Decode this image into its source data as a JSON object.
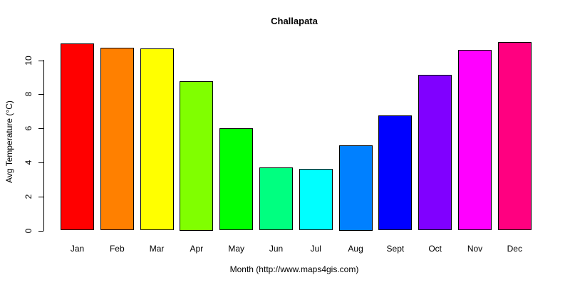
{
  "chart_data": {
    "type": "bar",
    "title": "Challapata",
    "xlabel": "Month (http://www.maps4gis.com)",
    "ylabel": "Avg Temperature (°C)",
    "categories": [
      "Jan",
      "Feb",
      "Mar",
      "Apr",
      "May",
      "Jun",
      "Jul",
      "Aug",
      "Sept",
      "Oct",
      "Nov",
      "Dec"
    ],
    "values": [
      11.0,
      10.75,
      10.7,
      8.75,
      6.0,
      3.7,
      3.6,
      5.0,
      6.75,
      9.15,
      10.6,
      11.05
    ],
    "colors": [
      "#FF0000",
      "#FF8000",
      "#FFFF00",
      "#80FF00",
      "#00FF00",
      "#00FF80",
      "#00FFFF",
      "#0080FF",
      "#0000FF",
      "#8000FF",
      "#FF00FF",
      "#FF0080"
    ],
    "ylim": [
      0,
      11.2
    ],
    "yticks": [
      0,
      2,
      4,
      6,
      8,
      10
    ],
    "grid": false,
    "legend": "none"
  }
}
